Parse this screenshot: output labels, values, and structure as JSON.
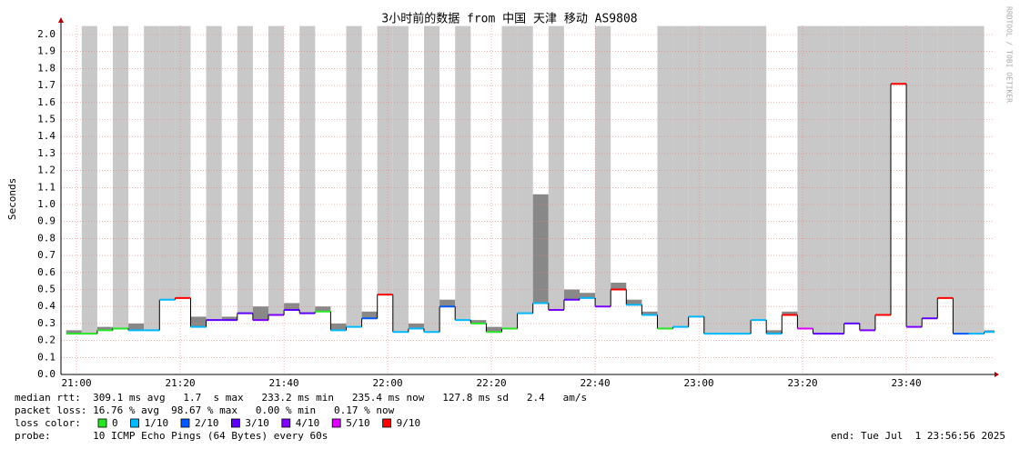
{
  "chart_data": {
    "type": "smokeping",
    "title": "3小时前的数据 from 中国 天津 移动 AS9808",
    "y_label": "Seconds",
    "watermark": "RRDTOOL / TOBI OETIKER",
    "xlim": [
      "20:57",
      "23:57"
    ],
    "xticks": [
      "21:00",
      "21:20",
      "21:40",
      "22:00",
      "22:20",
      "22:40",
      "23:00",
      "23:20",
      "23:40"
    ],
    "ylim": [
      0,
      2.0
    ],
    "yticks": [
      {
        "value": 0,
        "label": "0.0"
      },
      {
        "value": 0.1,
        "label": "0.1"
      },
      {
        "value": 0.2,
        "label": "0.2"
      },
      {
        "value": 0.3,
        "label": "0.3"
      },
      {
        "value": 0.4,
        "label": "0.4"
      },
      {
        "value": 0.5,
        "label": "0.5"
      },
      {
        "value": 0.6,
        "label": "0.6"
      },
      {
        "value": 0.7,
        "label": "0.7"
      },
      {
        "value": 0.8,
        "label": "0.8"
      },
      {
        "value": 0.9,
        "label": "0.9"
      },
      {
        "value": 1.0,
        "label": "1.0"
      },
      {
        "value": 1.1,
        "label": "1.1"
      },
      {
        "value": 1.2,
        "label": "1.2"
      },
      {
        "value": 1.3,
        "label": "1.3"
      },
      {
        "value": 1.4,
        "label": "1.4"
      },
      {
        "value": 1.5,
        "label": "1.5"
      },
      {
        "value": 1.6,
        "label": "1.6"
      },
      {
        "value": 1.7,
        "label": "1.7"
      },
      {
        "value": 1.8,
        "label": "1.8"
      },
      {
        "value": 1.9,
        "label": "1.9"
      },
      {
        "value": 2.0,
        "label": "2.0"
      }
    ],
    "grid": true,
    "x": [
      "20:58",
      "21:01",
      "21:04",
      "21:07",
      "21:10",
      "21:13",
      "21:16",
      "21:19",
      "21:22",
      "21:25",
      "21:28",
      "21:31",
      "21:34",
      "21:37",
      "21:40",
      "21:43",
      "21:46",
      "21:49",
      "21:52",
      "21:55",
      "21:58",
      "22:01",
      "22:04",
      "22:07",
      "22:10",
      "22:13",
      "22:16",
      "22:19",
      "22:22",
      "22:25",
      "22:28",
      "22:31",
      "22:34",
      "22:37",
      "22:40",
      "22:43",
      "22:46",
      "22:49",
      "22:52",
      "22:55",
      "22:58",
      "23:01",
      "23:04",
      "23:07",
      "23:10",
      "23:13",
      "23:16",
      "23:19",
      "23:22",
      "23:25",
      "23:28",
      "23:31",
      "23:34",
      "23:37",
      "23:40",
      "23:43",
      "23:46",
      "23:49",
      "23:52",
      "23:55"
    ],
    "series": [
      {
        "values": [
          0.24,
          0.24,
          0.26,
          0.27,
          0.26,
          0.26,
          0.44,
          0.45,
          0.28,
          0.32,
          0.32,
          0.36,
          0.32,
          0.35,
          0.38,
          0.36,
          0.37,
          0.26,
          0.28,
          0.33,
          0.47,
          0.25,
          0.27,
          0.25,
          0.4,
          0.32,
          0.3,
          0.25,
          0.27,
          0.36,
          0.42,
          0.38,
          0.44,
          0.45,
          0.4,
          0.5,
          0.41,
          0.35,
          0.27,
          0.28,
          0.34,
          0.24,
          0.24,
          0.24,
          0.32,
          0.24,
          0.35,
          0.27,
          0.24,
          0.24,
          0.3,
          0.26,
          0.35,
          1.71,
          0.28,
          0.33,
          0.45,
          0.24,
          0.24,
          0.25
        ],
        "loss": [
          0,
          0,
          0,
          0,
          1,
          1,
          1,
          9,
          1,
          3,
          3,
          3,
          4,
          4,
          3,
          3,
          0,
          1,
          1,
          2,
          9,
          1,
          1,
          1,
          2,
          1,
          0,
          0,
          0,
          1,
          1,
          4,
          3,
          1,
          4,
          9,
          1,
          1,
          0,
          1,
          1,
          1,
          1,
          1,
          1,
          1,
          9,
          5,
          3,
          3,
          3,
          4,
          9,
          9,
          4,
          3,
          9,
          2,
          1,
          1
        ],
        "smoke_max": [
          0.26,
          2.05,
          0.28,
          2.05,
          0.3,
          2.05,
          2.05,
          2.05,
          0.34,
          2.05,
          0.34,
          2.05,
          0.4,
          2.05,
          0.42,
          2.05,
          0.4,
          0.3,
          2.05,
          0.37,
          2.05,
          2.05,
          0.3,
          2.05,
          0.44,
          2.05,
          0.32,
          0.28,
          2.05,
          2.05,
          1.06,
          2.05,
          0.5,
          0.48,
          2.05,
          0.54,
          0.44,
          0.37,
          2.05,
          2.05,
          2.05,
          2.05,
          2.05,
          2.05,
          2.05,
          0.26,
          0.37,
          2.05,
          2.05,
          2.05,
          2.05,
          2.05,
          2.05,
          2.05,
          2.05,
          2.05,
          2.05,
          2.05,
          2.05,
          0.26
        ]
      }
    ],
    "stats": [
      "median rtt:  309.1 ms avg   1.7  s max   233.2 ms min   235.4 ms now   127.8 ms sd   2.4   am/s",
      "packet loss: 16.76 % avg  98.67 % max   0.00 % min   0.17 % now"
    ],
    "loss_legend_title": "loss color:",
    "loss_legend": [
      {
        "value": 0,
        "label": "0",
        "color": "#26e626"
      },
      {
        "value": 1,
        "label": "1/10",
        "color": "#00b8ff"
      },
      {
        "value": 2,
        "label": "2/10",
        "color": "#0059ff"
      },
      {
        "value": 3,
        "label": "3/10",
        "color": "#5e00ff"
      },
      {
        "value": 4,
        "label": "4/10",
        "color": "#7e00ff"
      },
      {
        "value": 5,
        "label": "5/10",
        "color": "#dd00ff"
      },
      {
        "value": 9,
        "label": "9/10",
        "color": "#ff0000"
      }
    ],
    "probe": "probe:       10 ICMP Echo Pings (64 Bytes) every 60s",
    "end": "end: Tue Jul  1 23:56:56 2025"
  }
}
